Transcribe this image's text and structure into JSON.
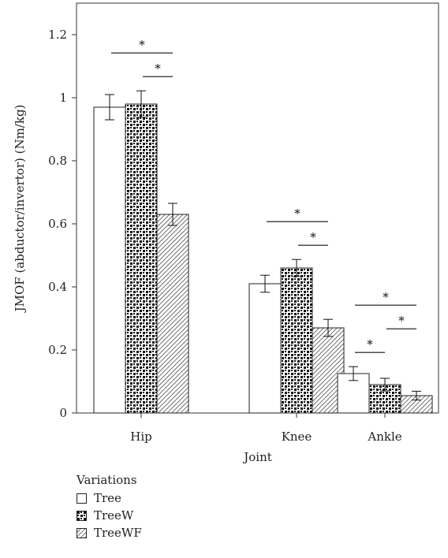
{
  "chart_data": {
    "type": "bar",
    "xlabel": "Joint",
    "ylabel": "JMOF (abductor/invertor) (Nm/kg)",
    "ylim": [
      0,
      1.3
    ],
    "yticks": [
      "0",
      "0.2",
      "0.4",
      "0.6",
      "0.8",
      "1",
      "1.2"
    ],
    "categories": [
      "Hip",
      "Knee",
      "Ankle"
    ],
    "series": [
      {
        "name": "Tree",
        "values": [
          0.97,
          0.41,
          0.125
        ],
        "errors": [
          0.04,
          0.027,
          0.022
        ],
        "pattern": "plain"
      },
      {
        "name": "TreeW",
        "values": [
          0.98,
          0.46,
          0.09
        ],
        "errors": [
          0.042,
          0.027,
          0.02
        ],
        "pattern": "checker"
      },
      {
        "name": "TreeWF",
        "values": [
          0.63,
          0.27,
          0.055
        ],
        "errors": [
          0.035,
          0.027,
          0.014
        ],
        "pattern": "diagonal"
      }
    ],
    "significance": [
      {
        "category": "Hip",
        "from": 0,
        "to": 2,
        "label": "*"
      },
      {
        "category": "Hip",
        "from": 1,
        "to": 2,
        "label": "*"
      },
      {
        "category": "Knee",
        "from": 0,
        "to": 2,
        "label": "*"
      },
      {
        "category": "Knee",
        "from": 1,
        "to": 2,
        "label": "*"
      },
      {
        "category": "Ankle",
        "from": 0,
        "to": 2,
        "label": "*"
      },
      {
        "category": "Ankle",
        "from": 0,
        "to": 1,
        "label": "*"
      },
      {
        "category": "Ankle",
        "from": 1,
        "to": 2,
        "label": "*"
      }
    ],
    "legend": {
      "title": "Variations",
      "position": "bottom-left"
    },
    "colors": {
      "axis": "#333333",
      "bar_fill": "#ffffff",
      "pattern_dark": "#111111"
    }
  }
}
